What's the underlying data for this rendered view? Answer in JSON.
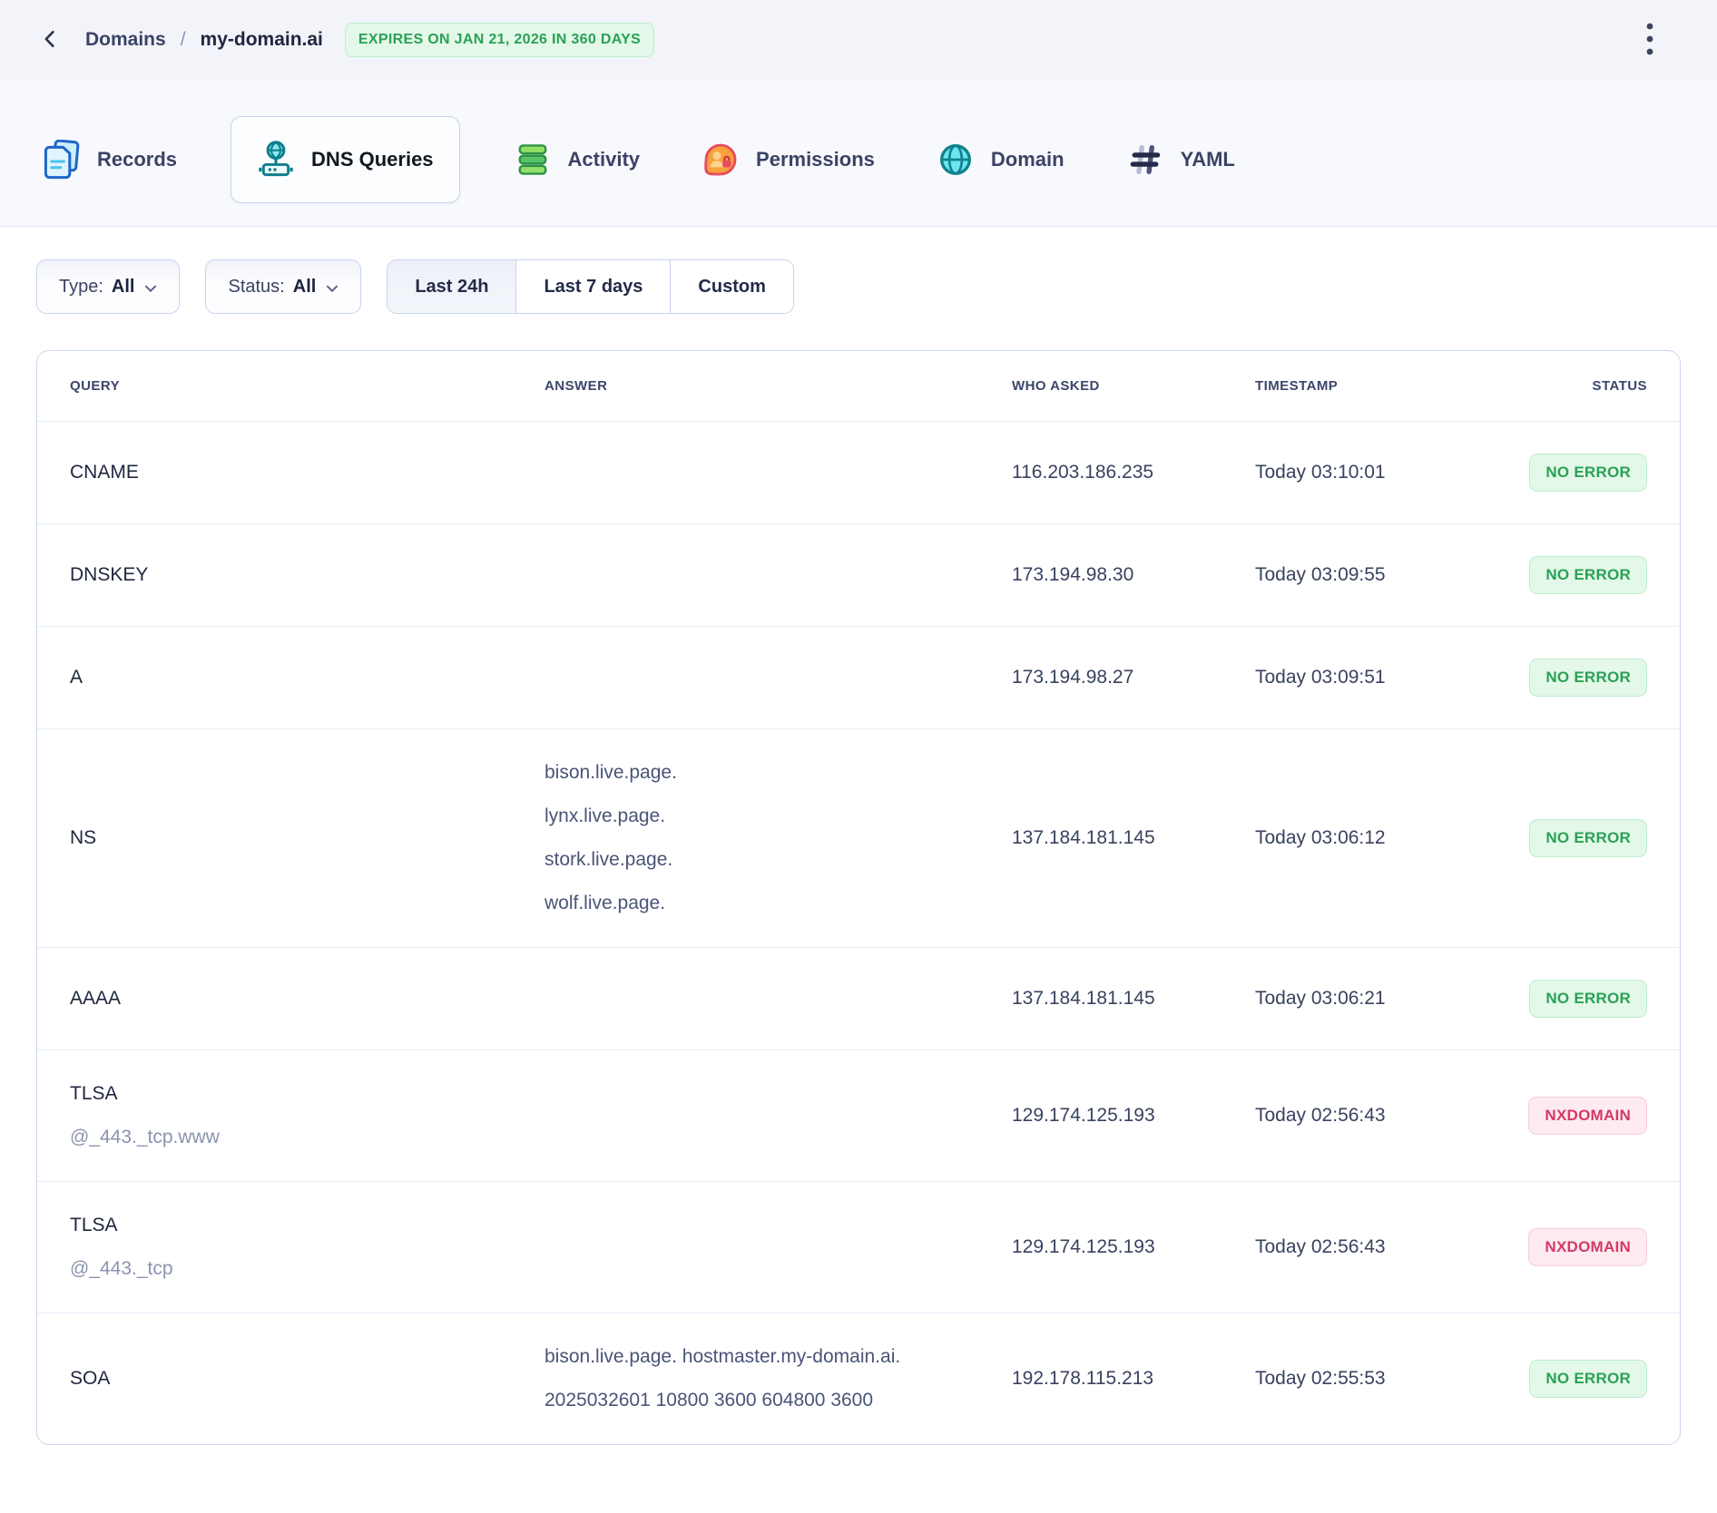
{
  "header": {
    "back_icon": "chevron-left-icon",
    "breadcrumb": {
      "parent": "Domains",
      "separator": "/",
      "current": "my-domain.ai"
    },
    "expiry_badge": "EXPIRES ON JAN 21, 2026 IN 360 DAYS",
    "menu_icon": "kebab-menu-icon"
  },
  "tabs": [
    {
      "label": "Records",
      "icon": "documents-icon",
      "active": false
    },
    {
      "label": "DNS Queries",
      "icon": "dns-server-icon",
      "active": true
    },
    {
      "label": "Activity",
      "icon": "layers-icon",
      "active": false
    },
    {
      "label": "Permissions",
      "icon": "people-lock-icon",
      "active": false
    },
    {
      "label": "Domain",
      "icon": "globe-icon",
      "active": false
    },
    {
      "label": "YAML",
      "icon": "hash-icon",
      "active": false
    }
  ],
  "filters": {
    "type": {
      "label": "Type:",
      "value": "All",
      "icon": "chevron-down-icon"
    },
    "status": {
      "label": "Status:",
      "value": "All",
      "icon": "chevron-down-icon"
    },
    "range_options": [
      {
        "label": "Last 24h",
        "selected": true
      },
      {
        "label": "Last 7 days",
        "selected": false
      },
      {
        "label": "Custom",
        "selected": false
      }
    ]
  },
  "table": {
    "columns": [
      "QUERY",
      "ANSWER",
      "WHO ASKED",
      "TIMESTAMP",
      "STATUS"
    ],
    "rows": [
      {
        "query": "CNAME",
        "subname": null,
        "answers": [],
        "who_asked": "116.203.186.235",
        "timestamp": "Today 03:10:01",
        "status": "NO ERROR",
        "status_kind": "success"
      },
      {
        "query": "DNSKEY",
        "subname": null,
        "answers": [],
        "who_asked": "173.194.98.30",
        "timestamp": "Today 03:09:55",
        "status": "NO ERROR",
        "status_kind": "success"
      },
      {
        "query": "A",
        "subname": null,
        "answers": [],
        "who_asked": "173.194.98.27",
        "timestamp": "Today 03:09:51",
        "status": "NO ERROR",
        "status_kind": "success"
      },
      {
        "query": "NS",
        "subname": null,
        "answers": [
          "bison.live.page.",
          "lynx.live.page.",
          "stork.live.page.",
          "wolf.live.page."
        ],
        "who_asked": "137.184.181.145",
        "timestamp": "Today 03:06:12",
        "status": "NO ERROR",
        "status_kind": "success"
      },
      {
        "query": "AAAA",
        "subname": null,
        "answers": [],
        "who_asked": "137.184.181.145",
        "timestamp": "Today 03:06:21",
        "status": "NO ERROR",
        "status_kind": "success"
      },
      {
        "query": "TLSA",
        "subname": "@_443._tcp.www",
        "answers": [],
        "who_asked": "129.174.125.193",
        "timestamp": "Today 02:56:43",
        "status": "NXDOMAIN",
        "status_kind": "error"
      },
      {
        "query": "TLSA",
        "subname": "@_443._tcp",
        "answers": [],
        "who_asked": "129.174.125.193",
        "timestamp": "Today 02:56:43",
        "status": "NXDOMAIN",
        "status_kind": "error"
      },
      {
        "query": "SOA",
        "subname": null,
        "answers": [
          "bison.live.page. hostmaster.my-domain.ai. 2025032601 10800 3600 604800 3600"
        ],
        "who_asked": "192.178.115.213",
        "timestamp": "Today 02:55:53",
        "status": "NO ERROR",
        "status_kind": "success"
      }
    ]
  },
  "colors": {
    "badge_success_text": "#2aa155",
    "badge_success_bg": "#e3f8e9",
    "badge_success_border": "#bfedcc",
    "badge_error_text": "#d5386a",
    "badge_error_bg": "#fdebef",
    "badge_error_border": "#f6ccd8",
    "header_bg": "#f3f4fa",
    "tabbar_bg": "#f8f9fd",
    "table_border": "#ccd7ef"
  }
}
